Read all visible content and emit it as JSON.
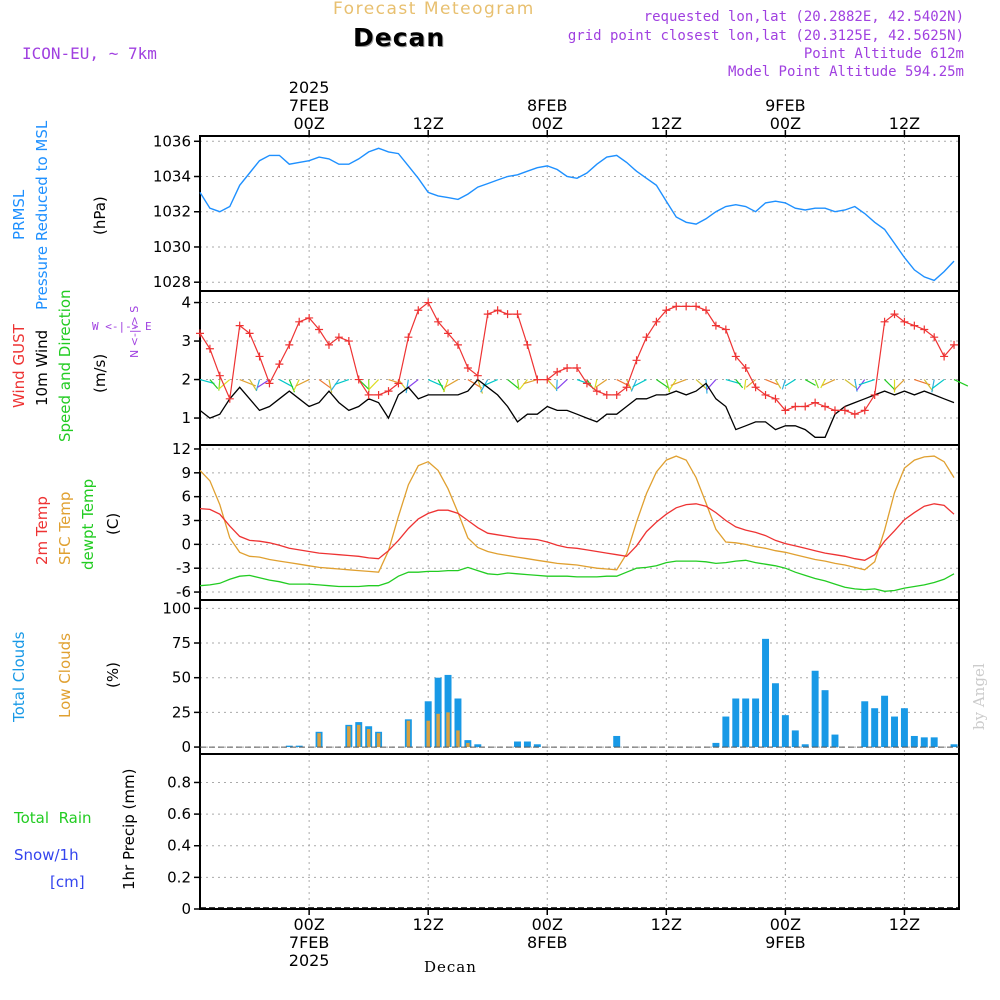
{
  "header": {
    "subtitle": "Forecast Meteogram",
    "location": "Decan",
    "model": "ICON-EU, ~ 7km",
    "requested": "requested lon,lat (20.2882E, 42.5402N)",
    "grid_point": "grid point closest lon,lat (20.3125E, 42.5625N)",
    "point_altitude": "Point Altitude 612m",
    "model_altitude": "Model Point Altitude 594.25m",
    "footer_location": "Decan",
    "credit": "by Angel"
  },
  "time_axis": {
    "top_labels": [
      {
        "hour": 0,
        "lines": [
          "2025",
          "7FEB",
          "00Z"
        ]
      },
      {
        "hour": 12,
        "lines": [
          "12Z"
        ]
      },
      {
        "hour": 24,
        "lines": [
          "8FEB",
          "00Z"
        ]
      },
      {
        "hour": 36,
        "lines": [
          "12Z"
        ]
      },
      {
        "hour": 48,
        "lines": [
          "9FEB",
          "00Z"
        ]
      },
      {
        "hour": 60,
        "lines": [
          "12Z"
        ]
      }
    ],
    "bottom_labels": [
      {
        "hour": 0,
        "lines": [
          "00Z",
          "7FEB",
          "2025"
        ]
      },
      {
        "hour": 12,
        "lines": [
          "12Z"
        ]
      },
      {
        "hour": 24,
        "lines": [
          "00Z",
          "8FEB"
        ]
      },
      {
        "hour": 36,
        "lines": [
          "12Z"
        ]
      },
      {
        "hour": 48,
        "lines": [
          "00Z",
          "9FEB"
        ]
      },
      {
        "hour": 60,
        "lines": [
          "12Z"
        ]
      }
    ],
    "range_hours": [
      -11,
      65.5
    ]
  },
  "panel_labels": {
    "pressure": {
      "line1": "PRMSL",
      "line2": "Pressure Reduced to MSL",
      "unit": "(hPa)"
    },
    "wind": {
      "gust": "Wind GUST",
      "wind10": "10m Wind",
      "dir": "Speed and Direction",
      "unit": "(m/s)",
      "compass_ns": "N <-|-> S",
      "compass_we": "W <-|-> E"
    },
    "temp": {
      "t2m": "2m Temp",
      "sfc": "SFC Temp",
      "dewpt": "dewpt Temp",
      "unit": "(C)"
    },
    "clouds": {
      "total": "Total Clouds",
      "low": "Low Clouds",
      "unit": "(%)"
    },
    "precip": {
      "rain": "Total  Rain",
      "snow": "Snow/1h",
      "snow_unit": "[cm]",
      "axis": "1hr Precip (mm)"
    }
  },
  "colors": {
    "pressure": "#1e90ff",
    "gust": "#ee3333",
    "wind10": "#000000",
    "t2m": "#ee3333",
    "sfc": "#e0a030",
    "dewpt": "#22cc22",
    "total_clouds": "#1899e6",
    "low_clouds": "#d8a040",
    "rain": "#22cc22",
    "snow": "#3344ee",
    "header_purple": "#a040e0",
    "header_orange": "#e8c070"
  },
  "chart_data": {
    "type": "line",
    "x_units": "hours from 2025-02-07 00Z",
    "x": [
      -11,
      -10,
      -9,
      -8,
      -7,
      -6,
      -5,
      -4,
      -3,
      -2,
      -1,
      0,
      1,
      2,
      3,
      4,
      5,
      6,
      7,
      8,
      9,
      10,
      11,
      12,
      13,
      14,
      15,
      16,
      17,
      18,
      19,
      20,
      21,
      22,
      23,
      24,
      25,
      26,
      27,
      28,
      29,
      30,
      31,
      32,
      33,
      34,
      35,
      36,
      37,
      38,
      39,
      40,
      41,
      42,
      43,
      44,
      45,
      46,
      47,
      48,
      49,
      50,
      51,
      52,
      53,
      54,
      55,
      56,
      57,
      58,
      59,
      60,
      61,
      62,
      63,
      64,
      65
    ],
    "pressure": {
      "ylabel": "hPa",
      "ylim": [
        1027.5,
        1036.3
      ],
      "ticks": [
        1028,
        1030,
        1032,
        1034,
        1036
      ],
      "values": [
        1033.1,
        1032.2,
        1032.0,
        1032.3,
        1033.5,
        1034.2,
        1034.9,
        1035.2,
        1035.2,
        1034.7,
        1034.8,
        1034.9,
        1035.1,
        1035.0,
        1034.7,
        1034.7,
        1035.0,
        1035.4,
        1035.6,
        1035.4,
        1035.3,
        1034.6,
        1033.9,
        1033.1,
        1032.9,
        1032.8,
        1032.7,
        1033.0,
        1033.4,
        1033.6,
        1033.8,
        1034.0,
        1034.1,
        1034.3,
        1034.5,
        1034.6,
        1034.4,
        1034.0,
        1033.9,
        1034.2,
        1034.7,
        1035.1,
        1035.2,
        1034.8,
        1034.3,
        1033.9,
        1033.5,
        1032.6,
        1031.7,
        1031.4,
        1031.3,
        1031.6,
        1032.0,
        1032.3,
        1032.4,
        1032.3,
        1032.0,
        1032.5,
        1032.6,
        1032.5,
        1032.2,
        1032.1,
        1032.2,
        1032.2,
        1032.0,
        1032.1,
        1032.3,
        1031.9,
        1031.4,
        1031.0,
        1030.2,
        1029.4,
        1028.7,
        1028.3,
        1028.1,
        1028.6,
        1029.2
      ]
    },
    "wind": {
      "ylabel": "m/s",
      "ylim": [
        0.3,
        4.3
      ],
      "ticks": [
        1,
        2,
        3,
        4
      ],
      "gust": [
        3.2,
        2.8,
        2.1,
        1.5,
        3.4,
        3.2,
        2.6,
        1.9,
        2.4,
        2.9,
        3.5,
        3.6,
        3.3,
        2.9,
        3.1,
        3.0,
        2.0,
        1.6,
        1.6,
        1.7,
        1.9,
        3.1,
        3.8,
        4.0,
        3.5,
        3.2,
        2.9,
        2.3,
        2.1,
        3.7,
        3.8,
        3.7,
        3.7,
        2.9,
        2.0,
        2.0,
        2.2,
        2.3,
        2.3,
        1.9,
        1.7,
        1.6,
        1.6,
        1.8,
        2.5,
        3.1,
        3.5,
        3.8,
        3.9,
        3.9,
        3.9,
        3.8,
        3.4,
        3.3,
        2.6,
        2.3,
        1.8,
        1.6,
        1.5,
        1.2,
        1.3,
        1.3,
        1.4,
        1.3,
        1.2,
        1.2,
        1.1,
        1.2,
        1.6,
        3.5,
        3.7,
        3.5,
        3.4,
        3.3,
        3.1,
        2.6,
        2.9
      ],
      "speed10m": [
        1.2,
        1.0,
        1.1,
        1.5,
        1.8,
        1.5,
        1.2,
        1.3,
        1.5,
        1.7,
        1.5,
        1.3,
        1.4,
        1.7,
        1.4,
        1.2,
        1.3,
        1.5,
        1.4,
        1.0,
        1.6,
        1.8,
        1.5,
        1.6,
        1.6,
        1.6,
        1.6,
        1.7,
        2.0,
        1.8,
        1.6,
        1.3,
        0.9,
        1.1,
        1.1,
        1.3,
        1.2,
        1.2,
        1.1,
        1.0,
        0.9,
        1.1,
        1.1,
        1.3,
        1.5,
        1.5,
        1.6,
        1.6,
        1.7,
        1.6,
        1.7,
        1.9,
        1.5,
        1.3,
        0.7,
        0.8,
        0.9,
        0.9,
        0.7,
        0.8,
        0.8,
        0.7,
        0.5,
        0.5,
        1.1,
        1.3,
        1.4,
        1.5,
        1.6,
        1.7,
        1.6,
        1.7,
        1.6,
        1.7,
        1.6,
        1.5,
        1.4
      ]
    },
    "temperature": {
      "ylabel": "C",
      "ylim": [
        -7.0,
        12.5
      ],
      "ticks": [
        -6,
        -3,
        0,
        3,
        6,
        9,
        12
      ],
      "t2m": [
        4.5,
        4.4,
        3.8,
        2.3,
        1.0,
        0.5,
        0.4,
        0.2,
        -0.1,
        -0.5,
        -0.7,
        -0.9,
        -1.1,
        -1.2,
        -1.3,
        -1.4,
        -1.5,
        -1.7,
        -1.8,
        -0.8,
        0.5,
        2.0,
        3.2,
        3.9,
        4.3,
        4.3,
        3.9,
        3.0,
        2.1,
        1.4,
        1.2,
        1.0,
        0.8,
        0.7,
        0.6,
        0.3,
        -0.1,
        -0.4,
        -0.5,
        -0.7,
        -0.9,
        -1.1,
        -1.3,
        -1.5,
        -0.2,
        1.6,
        2.8,
        3.8,
        4.6,
        5.0,
        5.1,
        4.8,
        4.0,
        3.0,
        2.2,
        1.8,
        1.5,
        1.1,
        0.5,
        0.1,
        -0.2,
        -0.5,
        -0.8,
        -1.1,
        -1.3,
        -1.5,
        -1.8,
        -2.0,
        -1.3,
        0.4,
        1.7,
        3.1,
        4.0,
        4.8,
        5.1,
        4.9,
        3.8
      ],
      "sfc": [
        9.3,
        8.0,
        5.0,
        0.8,
        -1.0,
        -1.5,
        -1.6,
        -1.9,
        -2.1,
        -2.3,
        -2.5,
        -2.7,
        -2.9,
        -3.0,
        -3.1,
        -3.2,
        -3.3,
        -3.4,
        -3.5,
        -0.8,
        3.5,
        7.5,
        9.9,
        10.4,
        9.3,
        7.0,
        4.0,
        0.8,
        -0.4,
        -0.9,
        -1.2,
        -1.4,
        -1.6,
        -1.8,
        -2.0,
        -2.2,
        -2.4,
        -2.5,
        -2.6,
        -2.8,
        -3.0,
        -3.1,
        -3.2,
        -1.2,
        2.8,
        6.4,
        9.1,
        10.6,
        11.1,
        10.6,
        8.4,
        5.2,
        1.9,
        0.3,
        0.2,
        0.0,
        -0.3,
        -0.5,
        -0.8,
        -1.0,
        -1.3,
        -1.6,
        -1.9,
        -2.1,
        -2.4,
        -2.6,
        -2.9,
        -3.2,
        -2.2,
        1.8,
        6.5,
        9.6,
        10.6,
        11.0,
        11.1,
        10.4,
        8.4
      ],
      "dewpt": [
        -5.2,
        -5.1,
        -4.9,
        -4.4,
        -4.0,
        -3.9,
        -4.2,
        -4.5,
        -4.7,
        -5.0,
        -5.0,
        -5.0,
        -5.1,
        -5.2,
        -5.3,
        -5.3,
        -5.3,
        -5.2,
        -5.2,
        -4.8,
        -4.0,
        -3.5,
        -3.5,
        -3.4,
        -3.4,
        -3.3,
        -3.3,
        -2.9,
        -3.3,
        -3.7,
        -3.8,
        -3.6,
        -3.7,
        -3.8,
        -3.9,
        -4.0,
        -4.0,
        -4.0,
        -4.1,
        -4.1,
        -4.1,
        -4.0,
        -4.0,
        -3.5,
        -3.0,
        -2.9,
        -2.7,
        -2.3,
        -2.1,
        -2.1,
        -2.1,
        -2.2,
        -2.4,
        -2.3,
        -2.1,
        -2.0,
        -2.3,
        -2.5,
        -2.7,
        -3.0,
        -3.5,
        -3.9,
        -4.3,
        -4.6,
        -5.0,
        -5.4,
        -5.6,
        -5.7,
        -5.6,
        -5.9,
        -5.8,
        -5.5,
        -5.3,
        -5.1,
        -4.8,
        -4.4,
        -3.7
      ]
    },
    "clouds": {
      "ylabel": "%",
      "ylim": [
        -5,
        106
      ],
      "ticks": [
        0,
        25,
        50,
        75,
        100
      ],
      "total": [
        0,
        0,
        0,
        0,
        0,
        0,
        0,
        0,
        0,
        1,
        1,
        0,
        11,
        0,
        0,
        16,
        18,
        15,
        11,
        0,
        0,
        20,
        0,
        33,
        50,
        52,
        35,
        5,
        2,
        0,
        0,
        0,
        4,
        4,
        2,
        0,
        0,
        0,
        0,
        0,
        0,
        0,
        8,
        0,
        0,
        0,
        0,
        0,
        0,
        0,
        0,
        0,
        3,
        22,
        35,
        35,
        35,
        78,
        46,
        23,
        12,
        2,
        55,
        41,
        9,
        0,
        0,
        33,
        28,
        37,
        22,
        28,
        8,
        7,
        7,
        0,
        2
      ],
      "low": [
        0,
        0,
        0,
        0,
        0,
        0,
        0,
        0,
        0,
        0,
        0,
        0,
        10,
        0,
        0,
        15,
        16,
        13,
        10,
        0,
        0,
        19,
        0,
        19,
        24,
        25,
        12,
        3,
        0,
        0,
        0,
        0,
        0,
        0,
        0,
        0,
        0,
        0,
        0,
        0,
        0,
        0,
        0,
        0,
        0,
        0,
        0,
        0,
        0,
        0,
        0,
        0,
        0,
        0,
        0,
        0,
        0,
        0,
        0,
        0,
        0,
        0,
        0,
        0,
        0,
        0,
        0,
        0,
        0,
        0,
        0,
        0,
        0,
        0,
        0,
        0,
        0
      ]
    },
    "precipitation": {
      "ylabel": "1hr Precip (mm)",
      "ylim": [
        0,
        0.98
      ],
      "ticks": [
        0,
        0.2,
        0.4,
        0.6,
        0.8
      ],
      "rain": [],
      "snow": []
    }
  }
}
